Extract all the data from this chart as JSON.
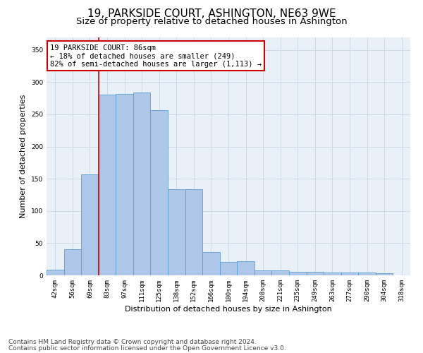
{
  "title": "19, PARKSIDE COURT, ASHINGTON, NE63 9WE",
  "subtitle": "Size of property relative to detached houses in Ashington",
  "xlabel": "Distribution of detached houses by size in Ashington",
  "ylabel": "Number of detached properties",
  "bar_labels": [
    "42sqm",
    "56sqm",
    "69sqm",
    "83sqm",
    "97sqm",
    "111sqm",
    "125sqm",
    "138sqm",
    "152sqm",
    "166sqm",
    "180sqm",
    "194sqm",
    "208sqm",
    "221sqm",
    "235sqm",
    "249sqm",
    "263sqm",
    "277sqm",
    "290sqm",
    "304sqm",
    "318sqm"
  ],
  "bar_heights": [
    9,
    41,
    157,
    281,
    282,
    284,
    257,
    134,
    134,
    36,
    21,
    22,
    8,
    8,
    6,
    5,
    4,
    4,
    4,
    3,
    0
  ],
  "bar_color": "#aec6e8",
  "bar_edge_color": "#5a9fd4",
  "vline_x": 2.5,
  "vline_color": "#cc0000",
  "annotation_text": "19 PARKSIDE COURT: 86sqm\n← 18% of detached houses are smaller (249)\n82% of semi-detached houses are larger (1,113) →",
  "annotation_box_color": "#cc0000",
  "annotation_facecolor": "white",
  "ylim": [
    0,
    370
  ],
  "yticks": [
    0,
    50,
    100,
    150,
    200,
    250,
    300,
    350
  ],
  "grid_color": "#d0d8e8",
  "bg_color": "#eaf0f8",
  "footer1": "Contains HM Land Registry data © Crown copyright and database right 2024.",
  "footer2": "Contains public sector information licensed under the Open Government Licence v3.0.",
  "title_fontsize": 11,
  "subtitle_fontsize": 9.5,
  "label_fontsize": 8,
  "tick_fontsize": 6.5,
  "annotation_fontsize": 7.5,
  "footer_fontsize": 6.5
}
